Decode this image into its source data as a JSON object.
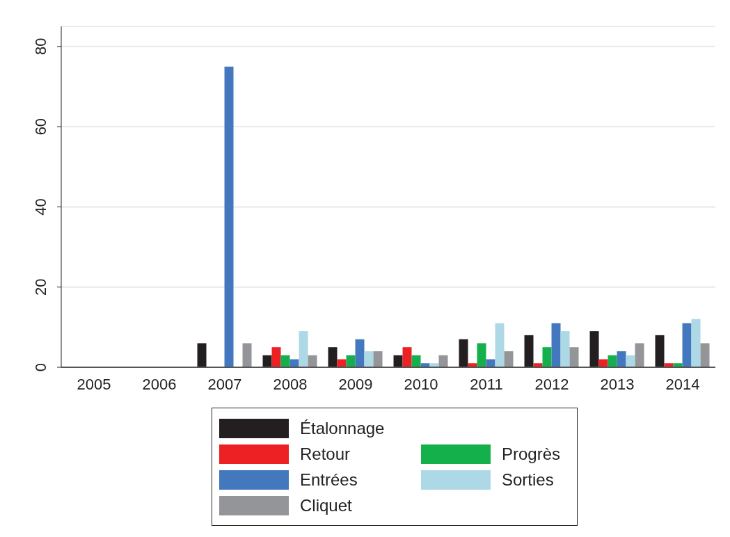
{
  "chart_data": {
    "type": "bar",
    "categories": [
      "2005",
      "2006",
      "2007",
      "2008",
      "2009",
      "2010",
      "2011",
      "2012",
      "2013",
      "2014"
    ],
    "series": [
      {
        "name": "Étalonnage",
        "color": "#231f20",
        "values": [
          0,
          0,
          6,
          3,
          5,
          3,
          7,
          8,
          9,
          8
        ]
      },
      {
        "name": "Retour",
        "color": "#ed2024",
        "values": [
          0,
          0,
          0,
          5,
          2,
          5,
          1,
          1,
          2,
          1
        ]
      },
      {
        "name": "Progrès",
        "color": "#13b04b",
        "values": [
          0,
          0,
          0,
          3,
          3,
          3,
          6,
          5,
          3,
          1
        ]
      },
      {
        "name": "Entrées",
        "color": "#4378bf",
        "values": [
          0,
          0,
          75,
          2,
          7,
          1,
          2,
          11,
          4,
          11
        ]
      },
      {
        "name": "Sorties",
        "color": "#add8e6",
        "values": [
          0,
          0,
          0,
          9,
          4,
          1,
          11,
          9,
          3,
          12
        ]
      },
      {
        "name": "Cliquet",
        "color": "#939598",
        "values": [
          0,
          0,
          6,
          3,
          4,
          3,
          4,
          5,
          6,
          6
        ]
      }
    ],
    "ylim": [
      0,
      85
    ],
    "yticks": [
      0,
      20,
      40,
      60,
      80
    ],
    "grid": "y",
    "legend": "bottom"
  }
}
